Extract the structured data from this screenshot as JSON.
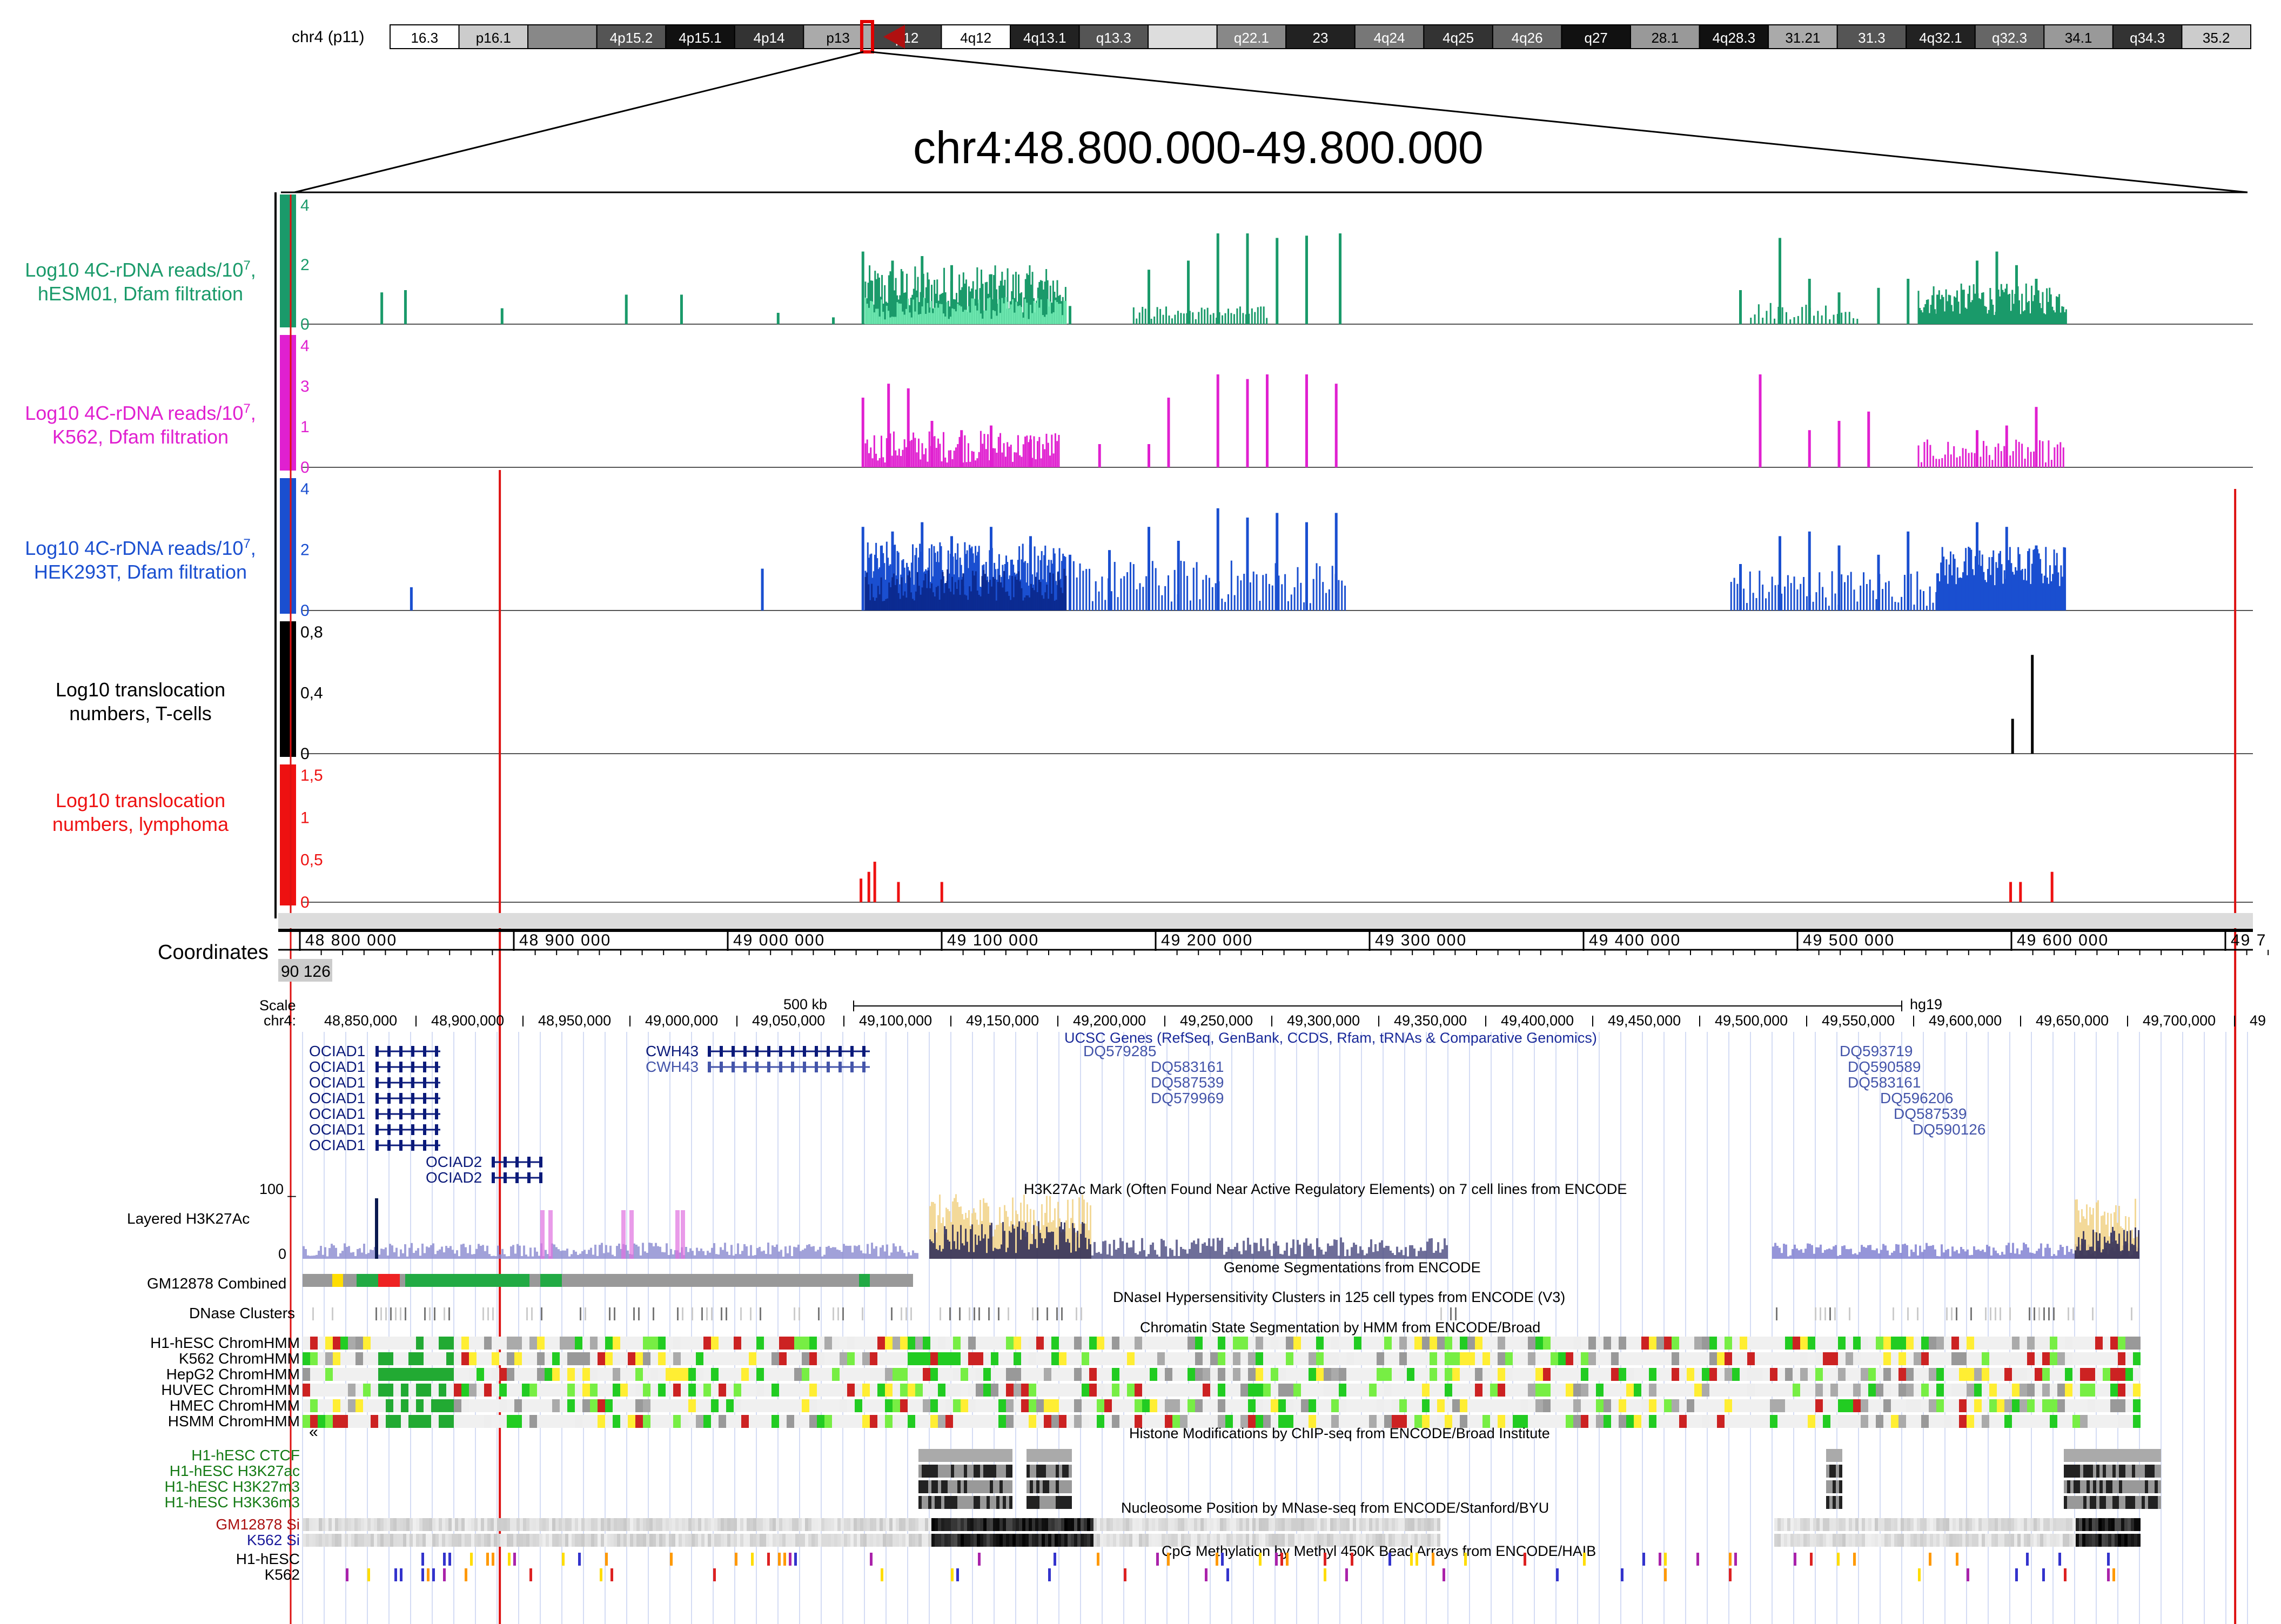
{
  "ideogram": {
    "chrom_label": "chr4 (p11)",
    "bands": [
      {
        "name": "16.3",
        "shade": "#ffffff"
      },
      {
        "name": "p16.1",
        "shade": "#cccccc"
      },
      {
        "name": "",
        "shade": "#888888"
      },
      {
        "name": "4p15.2",
        "shade": "#555555"
      },
      {
        "name": "4p15.1",
        "shade": "#111111"
      },
      {
        "name": "4p14",
        "shade": "#333333"
      },
      {
        "name": "p13",
        "shade": "#aaaaaa"
      },
      {
        "name": "p12",
        "shade": "#444444"
      },
      {
        "name": "4q12",
        "shade": "#ffffff"
      },
      {
        "name": "4q13.1",
        "shade": "#222222"
      },
      {
        "name": "q13.3",
        "shade": "#555555"
      },
      {
        "name": "",
        "shade": "#dddddd"
      },
      {
        "name": "q22.1",
        "shade": "#888888"
      },
      {
        "name": "23",
        "shade": "#222222"
      },
      {
        "name": "4q24",
        "shade": "#777777"
      },
      {
        "name": "4q25",
        "shade": "#333333"
      },
      {
        "name": "4q26",
        "shade": "#666666"
      },
      {
        "name": "q27",
        "shade": "#111111"
      },
      {
        "name": "28.1",
        "shade": "#999999"
      },
      {
        "name": "4q28.3",
        "shade": "#111111"
      },
      {
        "name": "31.21",
        "shade": "#aaaaaa"
      },
      {
        "name": "31.3",
        "shade": "#555555"
      },
      {
        "name": "4q32.1",
        "shade": "#222222"
      },
      {
        "name": "q32.3",
        "shade": "#666666"
      },
      {
        "name": "34.1",
        "shade": "#999999"
      },
      {
        "name": "q34.3",
        "shade": "#333333"
      },
      {
        "name": "35.2",
        "shade": "#cccccc"
      }
    ]
  },
  "region_title": "chr4:48.800.000-49.800.000",
  "colors": {
    "hesm01": "#1a9a6a",
    "k562": "#e020d0",
    "hek293t": "#1a4fd0",
    "tcells": "#000000",
    "lymphoma": "#ee1111",
    "red_marker": "#dd1111"
  },
  "track_labels": {
    "hesm01": {
      "line1": "Log10 4C-rDNA reads/10",
      "sup": "7",
      "tail": ",",
      "line2": "hESM01, Dfam filtration"
    },
    "k562": {
      "line1": "Log10 4C-rDNA reads/10",
      "sup": "7",
      "tail": ",",
      "line2": "K562, Dfam filtration"
    },
    "hek293t": {
      "line1": "Log10 4C-rDNA reads/10",
      "sup": "7",
      "tail": ",",
      "line2": "HEK293T, Dfam filtration"
    },
    "tcells": {
      "line1": "Log10 translocation",
      "line2": "numbers, T-cells"
    },
    "lymphoma": {
      "line1": "Log10 translocation",
      "line2": "numbers, lymphoma"
    }
  },
  "axis_ticks": {
    "hesm01": [
      "4",
      "2",
      "0"
    ],
    "k562": [
      "4",
      "3",
      "1",
      "0"
    ],
    "hek293t": [
      "4",
      "2",
      "0"
    ],
    "tcells": [
      "0,8",
      "0,4",
      "0"
    ],
    "lymphoma": [
      "1,5",
      "1",
      "0,5",
      "0"
    ]
  },
  "coordinates": {
    "label": "Coordinates",
    "ticks": [
      "48 800 000",
      "48 900 000",
      "49 000 000",
      "49 100 000",
      "49 200 000",
      "49 300 000",
      "49 400 000",
      "49 500 000",
      "49 600 000",
      "49 7"
    ],
    "left_cut": "90 126"
  },
  "ucsc": {
    "scale_label": "Scale",
    "chrom_label": "chr4:",
    "scale_text": "500 kb",
    "assembly": "hg19",
    "positions": [
      "48,850,000",
      "48,900,000",
      "48,950,000",
      "49,000,000",
      "49,050,000",
      "49,100,000",
      "49,150,000",
      "49,200,000",
      "49,250,000",
      "49,300,000",
      "49,350,000",
      "49,400,000",
      "49,450,000",
      "49,500,000",
      "49,550,000",
      "49,600,000",
      "49,650,000",
      "49,700,000",
      "49"
    ],
    "genes_track_title": "UCSC Genes (RefSeq, GenBank, CCDS, Rfam, tRNAs & Comparative Genomics)",
    "genes_left": [
      "OCIAD1",
      "OCIAD1",
      "OCIAD1",
      "OCIAD1",
      "OCIAD1",
      "OCIAD1",
      "OCIAD1"
    ],
    "genes_ociad2": [
      "OCIAD2",
      "OCIAD2"
    ],
    "genes_cwh43": [
      "CWH43",
      "CWH43"
    ],
    "genes_dq_mid": [
      "DQ579285",
      "DQ583161",
      "DQ587539",
      "DQ579969"
    ],
    "genes_dq_right": [
      "DQ593719",
      "DQ590589",
      "DQ583161",
      "DQ596206",
      "DQ587539",
      "DQ590126"
    ],
    "h3k27ac_label": "Layered H3K27Ac",
    "h3k27ac_title": "H3K27Ac Mark (Often Found Near Active Regulatory Elements) on 7 cell lines from ENCODE",
    "h3k27ac_top": "100 _",
    "h3k27ac_zero": "0",
    "genome_seg_title": "Genome Segmentations from ENCODE",
    "gm12878_label": "GM12878 Combined",
    "dnase_title": "DNaseI Hypersensitivity Clusters in 125 cell types from ENCODE (V3)",
    "dnase_label": "DNase Clusters",
    "chromhmm_title": "Chromatin State Segmentation by HMM from ENCODE/Broad",
    "chromhmm_rows": [
      "H1-hESC ChromHMM",
      "K562 ChromHMM",
      "HepG2 ChromHMM",
      "HUVEC ChromHMM",
      "HMEC ChromHMM",
      "HSMM ChromHMM"
    ],
    "histone_title": "Histone Modifications by ChIP-seq from ENCODE/Broad Institute",
    "histone_rows": [
      "H1-hESC CTCF",
      "H1-hESC H3K27ac",
      "H1-hESC H3K27m3",
      "H1-hESC H3K36m3"
    ],
    "nucleosome_title": "Nucleosome Position by MNase-seq from ENCODE/Stanford/BYU",
    "nucleosome_rows": [
      "GM12878 Si",
      "K562 Si"
    ],
    "cpg_title": "CpG Methylation by Methyl 450K Bead Arrays from ENCODE/HAIB",
    "cpg_rows": [
      "H1-hESC",
      "K562"
    ]
  },
  "chart_data": {
    "type": "bar",
    "title": "chr4:48.800.000-49.800.000",
    "x_range": [
      48800000,
      49800000
    ],
    "series": [
      {
        "name": "Log10 4C-rDNA reads/10^7, hESM01, Dfam filtration",
        "ylim": [
          0,
          5
        ],
        "points": [
          [
            48851000,
            1.4
          ],
          [
            48863000,
            1.5
          ],
          [
            48912000,
            0.7
          ],
          [
            48975000,
            1.3
          ],
          [
            49003000,
            1.3
          ],
          [
            49052000,
            0.5
          ],
          [
            49080000,
            0.3
          ],
          [
            49095000,
            3.2
          ],
          [
            49110000,
            2.8
          ],
          [
            49125000,
            3.0
          ],
          [
            49140000,
            2.6
          ],
          [
            49160000,
            2.2
          ],
          [
            49185000,
            1.6
          ],
          [
            49200000,
            0.8
          ],
          [
            49240000,
            2.4
          ],
          [
            49260000,
            2.8
          ],
          [
            49275000,
            4.0
          ],
          [
            49290000,
            4.0
          ],
          [
            49305000,
            3.8
          ],
          [
            49320000,
            3.9
          ],
          [
            49337000,
            4.0
          ],
          [
            49540000,
            1.5
          ],
          [
            49560000,
            3.8
          ],
          [
            49575000,
            2.0
          ],
          [
            49590000,
            1.4
          ],
          [
            49610000,
            1.6
          ],
          [
            49625000,
            2.0
          ],
          [
            49640000,
            1.3
          ],
          [
            49660000,
            2.8
          ],
          [
            49670000,
            3.2
          ],
          [
            49680000,
            2.6
          ],
          [
            49690000,
            2.0
          ]
        ]
      },
      {
        "name": "Log10 4C-rDNA reads/10^7, K562, Dfam filtration",
        "ylim": [
          0,
          5
        ],
        "points": [
          [
            49095000,
            3.0
          ],
          [
            49108000,
            3.6
          ],
          [
            49118000,
            3.4
          ],
          [
            49130000,
            2.0
          ],
          [
            49145000,
            1.6
          ],
          [
            49160000,
            1.8
          ],
          [
            49180000,
            1.2
          ],
          [
            49215000,
            1.0
          ],
          [
            49240000,
            1.0
          ],
          [
            49250000,
            3.0
          ],
          [
            49275000,
            4.0
          ],
          [
            49290000,
            3.8
          ],
          [
            49300000,
            4.0
          ],
          [
            49320000,
            4.0
          ],
          [
            49335000,
            3.6
          ],
          [
            49550000,
            4.0
          ],
          [
            49575000,
            1.6
          ],
          [
            49590000,
            2.0
          ],
          [
            49605000,
            2.4
          ],
          [
            49660000,
            1.6
          ],
          [
            49675000,
            1.8
          ],
          [
            49690000,
            2.6
          ]
        ]
      },
      {
        "name": "Log10 4C-rDNA reads/10^7, HEK293T, Dfam filtration",
        "ylim": [
          0,
          5
        ],
        "points": [
          [
            48866000,
            1.0
          ],
          [
            49044000,
            1.8
          ],
          [
            49095000,
            3.6
          ],
          [
            49110000,
            3.4
          ],
          [
            49125000,
            3.8
          ],
          [
            49140000,
            3.2
          ],
          [
            49160000,
            3.6
          ],
          [
            49180000,
            3.2
          ],
          [
            49200000,
            2.4
          ],
          [
            49220000,
            2.6
          ],
          [
            49240000,
            3.6
          ],
          [
            49255000,
            3.0
          ],
          [
            49275000,
            4.4
          ],
          [
            49290000,
            4.0
          ],
          [
            49305000,
            4.2
          ],
          [
            49320000,
            3.8
          ],
          [
            49335000,
            4.2
          ],
          [
            49540000,
            2.0
          ],
          [
            49560000,
            3.2
          ],
          [
            49575000,
            3.4
          ],
          [
            49590000,
            2.8
          ],
          [
            49610000,
            2.4
          ],
          [
            49625000,
            3.4
          ],
          [
            49640000,
            1.6
          ],
          [
            49660000,
            3.8
          ],
          [
            49675000,
            3.6
          ],
          [
            49690000,
            2.8
          ]
        ]
      },
      {
        "name": "Log10 translocation numbers, T-cells",
        "ylim": [
          0,
          1
        ],
        "points": [
          [
            49678000,
            0.3
          ],
          [
            49688000,
            0.85
          ]
        ]
      },
      {
        "name": "Log10 translocation numbers, lymphoma",
        "ylim": [
          0,
          1.8
        ],
        "points": [
          [
            49094000,
            0.35
          ],
          [
            49098000,
            0.45
          ],
          [
            49101000,
            0.6
          ],
          [
            49113000,
            0.3
          ],
          [
            49135000,
            0.3
          ],
          [
            49677000,
            0.3
          ],
          [
            49682000,
            0.3
          ],
          [
            49698000,
            0.45
          ]
        ]
      }
    ],
    "red_markers_x": [
      48911000,
      49791000
    ]
  }
}
